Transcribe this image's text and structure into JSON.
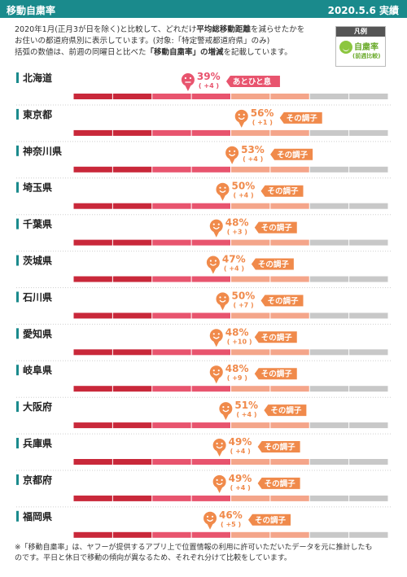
{
  "header": {
    "title": "移動自粛率",
    "date": "2020.5.6 実績"
  },
  "intro": {
    "line1_pre": "2020年1月(正月3が日を除く)と比較して、どれだけ",
    "line1_bold": "平均総移動距離",
    "line1_post": "を減らせたかを",
    "line2": "お住いの都道府県別に表示しています。(対象:「特定警戒都道府県」のみ)",
    "line3_pre": "括弧の数値は、前週の同曜日と比べた",
    "line3_bold": "「移動自粛率」の増減",
    "line3_post": "を記載しています。"
  },
  "legend": {
    "title": "凡例",
    "label": "自粛率",
    "sublabel": "(前週比較)"
  },
  "colors": {
    "header": "#1a8a8c",
    "accent_teal": "#1a8a8c",
    "bar_red": "#c9283a",
    "bar_pink": "#e8546e",
    "bar_salmon": "#f4a58a",
    "bar_gray": "#c8c8c8",
    "face_pink": "#e8546e",
    "face_orange": "#f08a4b"
  },
  "chart_data": {
    "type": "bar",
    "unit": "%",
    "segments": 8,
    "categories": [
      "北海道",
      "東京都",
      "神奈川県",
      "埼玉県",
      "千葉県",
      "茨城県",
      "石川県",
      "愛知県",
      "岐阜県",
      "大阪府",
      "兵庫県",
      "京都府",
      "福岡県"
    ],
    "values": [
      39,
      56,
      53,
      50,
      48,
      47,
      50,
      48,
      48,
      51,
      49,
      49,
      46
    ],
    "changes": [
      "+4",
      "+1",
      "+4",
      "+4",
      "+3",
      "+4",
      "+7",
      "+10",
      "+9",
      "+4",
      "+4",
      "+4",
      "+5"
    ],
    "status": [
      "あとひと息",
      "その調子",
      "その調子",
      "その調子",
      "その調子",
      "その調子",
      "その調子",
      "その調子",
      "その調子",
      "その調子",
      "その調子",
      "その調子",
      "その調子"
    ],
    "value_labels": [
      "39%",
      "56%",
      "53%",
      "50%",
      "48%",
      "47%",
      "50%",
      "48%",
      "48%",
      "51%",
      "49%",
      "49%",
      "46%"
    ],
    "change_labels": [
      "( +4 )",
      "( +1 )",
      "( +4 )",
      "( +4 )",
      "( +3 )",
      "( +4 )",
      "( +7 )",
      "( +10 )",
      "( +9 )",
      "( +4 )",
      "( +4 )",
      "( +4 )",
      "( +5 )"
    ],
    "face_type": [
      "sad",
      "happy",
      "happy",
      "happy",
      "happy",
      "happy",
      "happy",
      "happy",
      "happy",
      "happy",
      "happy",
      "happy",
      "happy"
    ]
  },
  "footnote": {
    "line1": "※「移動自粛率」は、ヤフーが提供するアプリ上で位置情報の利用に許可いただいたデータを元に推計したも",
    "line2": "のです。平日と休日で移動の傾向が異なるため、それぞれ分けて比較をしています。"
  }
}
